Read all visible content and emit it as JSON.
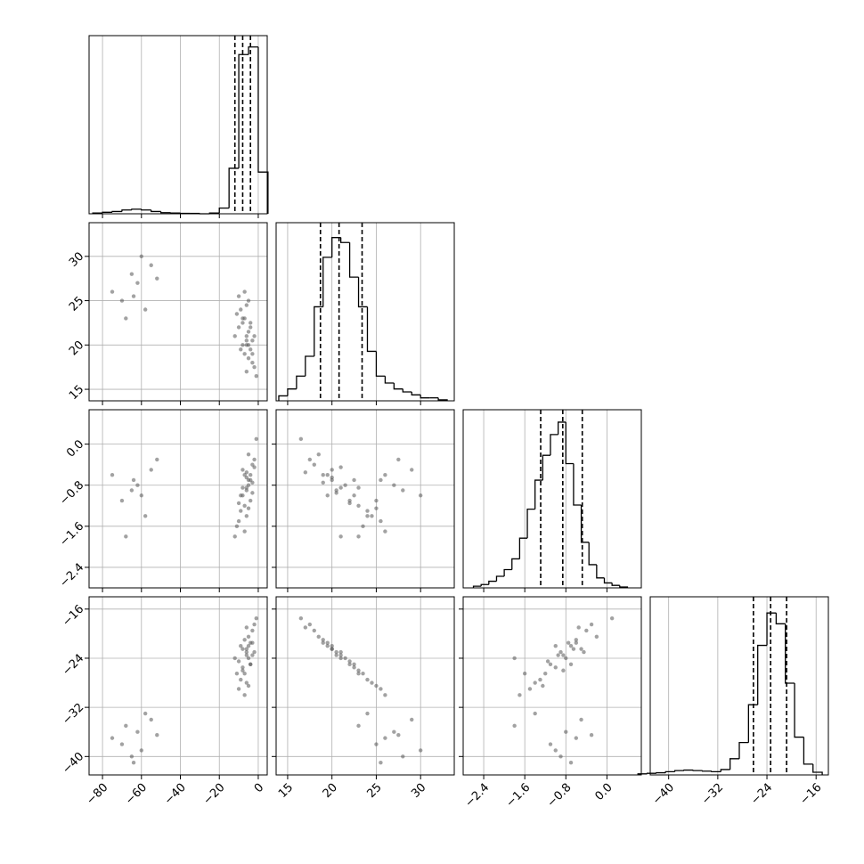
{
  "chart_data": {
    "type": "corner",
    "color": "#000000",
    "point_color": "#555555",
    "grid": true,
    "params": [
      {
        "lim": [
          -86.9,
          4.6
        ],
        "ticks": [
          {
            "value": -80,
            "label": "−80"
          },
          {
            "value": -60,
            "label": "−60"
          },
          {
            "value": -40,
            "label": "−40"
          },
          {
            "value": -20,
            "label": "−20"
          },
          0
        ],
        "bins": [
          -85,
          -80,
          -75,
          -70,
          -65,
          -60,
          -55,
          -50,
          -45,
          -40,
          -35,
          -30,
          -25,
          -20,
          -15,
          -10,
          -5,
          0,
          5
        ],
        "counts": [
          2,
          4,
          6,
          10,
          12,
          10,
          6,
          3,
          2,
          1,
          1,
          0,
          2,
          15,
          120,
          420,
          440,
          110
        ],
        "hist_ylim": [
          0,
          470
        ],
        "quantiles": [
          -12,
          -8,
          -4
        ]
      },
      {
        "lim": [
          13.7,
          33.8
        ],
        "ticks": [
          15,
          20,
          25,
          30
        ],
        "bins": [
          14,
          15,
          16,
          17,
          18,
          19,
          20,
          21,
          22,
          23,
          24,
          25,
          26,
          27,
          28,
          29,
          30,
          31,
          32,
          33
        ],
        "counts": [
          5,
          12,
          25,
          45,
          95,
          145,
          165,
          160,
          125,
          95,
          50,
          25,
          18,
          12,
          9,
          6,
          3,
          3,
          1
        ],
        "hist_ylim": [
          0,
          180
        ],
        "quantiles": [
          18.7,
          20.8,
          23.4
        ]
      },
      {
        "lim": [
          -2.8,
          0.67
        ],
        "ticks": [
          {
            "value": -2.4,
            "label": "−2.4"
          },
          {
            "value": -1.6,
            "label": "−1.6"
          },
          {
            "value": -0.8,
            "label": "−0.8"
          },
          {
            "value": 0,
            "label": "0.0"
          }
        ],
        "bins": [
          -2.6,
          -2.45,
          -2.3,
          -2.15,
          -2.0,
          -1.85,
          -1.7,
          -1.55,
          -1.4,
          -1.25,
          -1.1,
          -0.95,
          -0.8,
          -0.65,
          -0.5,
          -0.35,
          -0.2,
          -0.05,
          0.1,
          0.25,
          0.4
        ],
        "counts": [
          2,
          4,
          8,
          14,
          22,
          35,
          60,
          95,
          130,
          160,
          185,
          200,
          150,
          100,
          55,
          28,
          12,
          6,
          3,
          1
        ],
        "hist_ylim": [
          0,
          215
        ],
        "quantiles": [
          -1.29,
          -0.86,
          -0.48
        ]
      },
      {
        "lim": [
          -43,
          -14
        ],
        "ticks": [
          {
            "value": -40,
            "label": "−40"
          },
          {
            "value": -32,
            "label": "−32"
          },
          {
            "value": -24,
            "label": "−24"
          },
          {
            "value": -16,
            "label": "−16"
          }
        ],
        "bins": [
          -45,
          -43.5,
          -42,
          -40.5,
          -39,
          -37.5,
          -36,
          -34.5,
          -33,
          -31.5,
          -30,
          -28.5,
          -27,
          -25.5,
          -24,
          -22.5,
          -21,
          -19.5,
          -18,
          -16.5,
          -15
        ],
        "counts": [
          2,
          3,
          4,
          6,
          8,
          9,
          8,
          7,
          6,
          10,
          30,
          60,
          130,
          240,
          300,
          280,
          170,
          70,
          20,
          5
        ],
        "hist_ylim": [
          0,
          330
        ],
        "quantiles": [
          -26.2,
          -23.4,
          -20.8
        ]
      }
    ],
    "samples": [
      [
        -6,
        21,
        -0.85,
        -23.5
      ],
      [
        -4,
        19.5,
        -0.6,
        -21.5
      ],
      [
        -8,
        22.5,
        -1.0,
        -25.5
      ],
      [
        -5,
        20,
        -0.7,
        -22
      ],
      [
        -7,
        23,
        -1.2,
        -26.5
      ],
      [
        -3,
        18,
        -0.4,
        -19.5
      ],
      [
        -9,
        24,
        -1.3,
        -27.5
      ],
      [
        -6,
        20.5,
        -0.9,
        -23
      ],
      [
        -2,
        17.5,
        -0.3,
        -18.5
      ],
      [
        -10,
        25.5,
        -1.5,
        -29
      ],
      [
        -5,
        21.5,
        -0.8,
        -24
      ],
      [
        -7,
        19,
        -0.6,
        -21
      ],
      [
        -4,
        22,
        -1.1,
        -25
      ],
      [
        -11,
        23.5,
        -1.6,
        -26.5
      ],
      [
        -1,
        16.5,
        0.1,
        -17.5
      ],
      [
        -8,
        20,
        -0.5,
        -22.5
      ],
      [
        -6,
        24.5,
        -1.4,
        -28
      ],
      [
        -3,
        20.5,
        -0.95,
        -23.5
      ],
      [
        -12,
        21,
        -1.8,
        -24
      ],
      [
        -5,
        18.5,
        -0.2,
        -20.5
      ],
      [
        -7,
        26,
        -1.7,
        -30
      ],
      [
        -4,
        22.5,
        -0.7,
        -25
      ],
      [
        -9,
        19.5,
        -1.0,
        -22
      ],
      [
        -2,
        21,
        -0.45,
        -23
      ],
      [
        -6,
        17,
        -0.55,
        -19
      ],
      [
        -8,
        23,
        -0.85,
        -26
      ],
      [
        -5,
        25,
        -1.25,
        -28.5
      ],
      [
        -3,
        19,
        -0.75,
        -21.5
      ],
      [
        -10,
        22,
        -1.15,
        -24.5
      ],
      [
        -6,
        20,
        -0.65,
        -22.5
      ],
      [
        -62,
        27,
        -0.8,
        -36
      ],
      [
        -70,
        25,
        -1.1,
        -38
      ],
      [
        -55,
        29,
        -0.5,
        -34
      ],
      [
        -65,
        28,
        -0.9,
        -40
      ],
      [
        -58,
        24,
        -1.4,
        -33
      ],
      [
        -75,
        26,
        -0.6,
        -37
      ],
      [
        -60,
        30,
        -1.0,
        -39
      ],
      [
        -68,
        23,
        -1.8,
        -35
      ],
      [
        -52,
        27.5,
        -0.3,
        -36.5
      ],
      [
        -64,
        25.5,
        -0.7,
        -41
      ]
    ]
  }
}
